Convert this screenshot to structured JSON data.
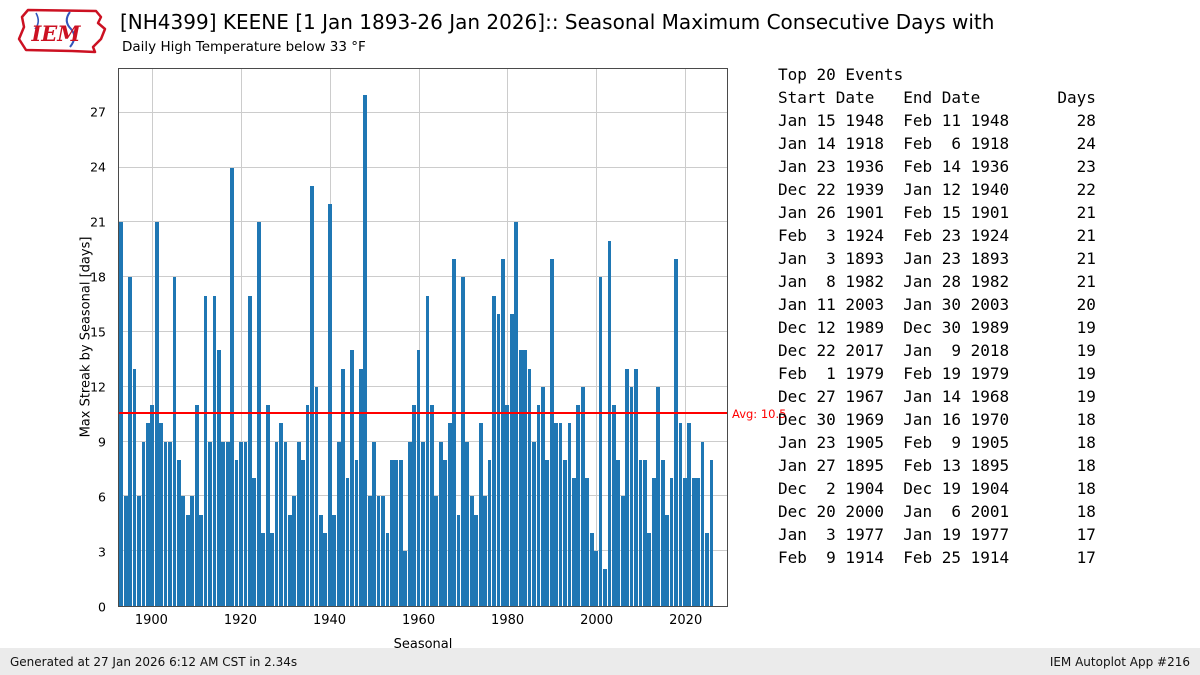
{
  "logo": {
    "text": "IEM"
  },
  "chart_data": {
    "type": "bar",
    "title": "[NH4399] KEENE [1 Jan 1893-26 Jan 2026]:: Seasonal Maximum Consecutive Days with",
    "subtitle": "Daily High Temperature below 33 °F",
    "xlabel": "Seasonal",
    "ylabel": "Max Streak by Seasonal [days]",
    "x_start": 1893,
    "x_end": 2026,
    "x_slots": 137,
    "ylim": [
      0,
      29.4
    ],
    "yticks": [
      0,
      3,
      6,
      9,
      12,
      15,
      18,
      21,
      24,
      27
    ],
    "xticks": [
      1900,
      1920,
      1940,
      1960,
      1980,
      2000,
      2020
    ],
    "avg": 10.5,
    "avg_label": "Avg: 10.5",
    "bar_color": "#1f77b4",
    "avg_color": "#ff0000",
    "grid": true,
    "values": [
      21,
      6,
      18,
      13,
      6,
      9,
      10,
      11,
      21,
      10,
      9,
      9,
      18,
      8,
      6,
      5,
      6,
      11,
      5,
      17,
      9,
      17,
      14,
      9,
      9,
      24,
      8,
      9,
      9,
      17,
      7,
      21,
      4,
      11,
      4,
      9,
      10,
      9,
      5,
      6,
      9,
      8,
      11,
      23,
      12,
      5,
      4,
      22,
      5,
      9,
      13,
      7,
      14,
      8,
      13,
      28,
      6,
      9,
      6,
      6,
      4,
      8,
      8,
      8,
      3,
      9,
      11,
      14,
      9,
      17,
      11,
      6,
      9,
      8,
      10,
      19,
      5,
      18,
      9,
      6,
      5,
      10,
      6,
      8,
      17,
      16,
      19,
      11,
      16,
      21,
      14,
      14,
      13,
      9,
      11,
      12,
      8,
      19,
      10,
      10,
      8,
      10,
      7,
      11,
      12,
      7,
      4,
      3,
      18,
      2,
      20,
      11,
      8,
      6,
      13,
      12,
      13,
      8,
      8,
      4,
      7,
      12,
      8,
      5,
      7,
      19,
      10,
      7,
      10,
      7,
      7,
      9,
      4,
      8
    ]
  },
  "events": {
    "title": "Top 20 Events",
    "columns": [
      "Start Date",
      "End Date",
      "Days"
    ],
    "rows": [
      {
        "start": "Jan 15 1948",
        "end": "Feb 11 1948",
        "days": 28
      },
      {
        "start": "Jan 14 1918",
        "end": "Feb  6 1918",
        "days": 24
      },
      {
        "start": "Jan 23 1936",
        "end": "Feb 14 1936",
        "days": 23
      },
      {
        "start": "Dec 22 1939",
        "end": "Jan 12 1940",
        "days": 22
      },
      {
        "start": "Jan 26 1901",
        "end": "Feb 15 1901",
        "days": 21
      },
      {
        "start": "Feb  3 1924",
        "end": "Feb 23 1924",
        "days": 21
      },
      {
        "start": "Jan  3 1893",
        "end": "Jan 23 1893",
        "days": 21
      },
      {
        "start": "Jan  8 1982",
        "end": "Jan 28 1982",
        "days": 21
      },
      {
        "start": "Jan 11 2003",
        "end": "Jan 30 2003",
        "days": 20
      },
      {
        "start": "Dec 12 1989",
        "end": "Dec 30 1989",
        "days": 19
      },
      {
        "start": "Dec 22 2017",
        "end": "Jan  9 2018",
        "days": 19
      },
      {
        "start": "Feb  1 1979",
        "end": "Feb 19 1979",
        "days": 19
      },
      {
        "start": "Dec 27 1967",
        "end": "Jan 14 1968",
        "days": 19
      },
      {
        "start": "Dec 30 1969",
        "end": "Jan 16 1970",
        "days": 18
      },
      {
        "start": "Jan 23 1905",
        "end": "Feb  9 1905",
        "days": 18
      },
      {
        "start": "Jan 27 1895",
        "end": "Feb 13 1895",
        "days": 18
      },
      {
        "start": "Dec  2 1904",
        "end": "Dec 19 1904",
        "days": 18
      },
      {
        "start": "Dec 20 2000",
        "end": "Jan  6 2001",
        "days": 18
      },
      {
        "start": "Jan  3 1977",
        "end": "Jan 19 1977",
        "days": 17
      },
      {
        "start": "Feb  9 1914",
        "end": "Feb 25 1914",
        "days": 17
      }
    ]
  },
  "footer": {
    "left": "Generated at 27 Jan 2026 6:12 AM CST in 2.34s",
    "right": "IEM Autoplot App #216"
  }
}
